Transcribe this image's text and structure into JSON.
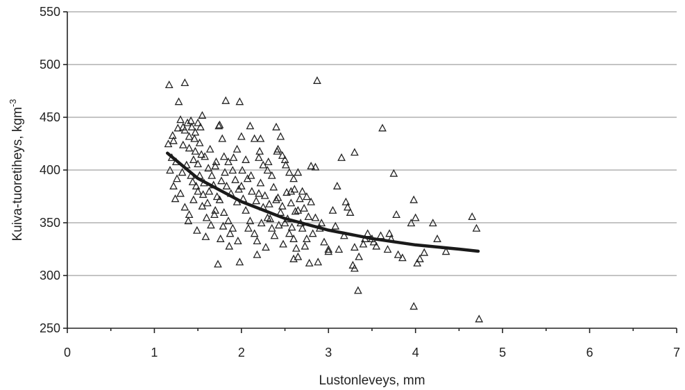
{
  "chart_data": {
    "type": "scatter",
    "title": "",
    "xlabel": "Lustonleveys, mm",
    "ylabel": "Kuiva-tuoretiheys, kgm",
    "ylabel_superscript": "-3",
    "xlim": [
      0,
      7
    ],
    "ylim": [
      250,
      550
    ],
    "xticks": [
      "0",
      "1",
      "2",
      "3",
      "4",
      "5",
      "6",
      "7"
    ],
    "yticks": [
      "250",
      "300",
      "350",
      "400",
      "450",
      "500",
      "550"
    ],
    "grid": "horizontal",
    "marker": "open-triangle",
    "trendline": {
      "type": "curve",
      "x": [
        1.15,
        1.5,
        2.0,
        2.5,
        3.0,
        3.5,
        4.0,
        4.5,
        4.72
      ],
      "y": [
        416,
        392,
        370,
        354,
        343,
        335,
        329,
        325,
        323
      ]
    },
    "points": [
      [
        1.17,
        481
      ],
      [
        1.35,
        483
      ],
      [
        1.28,
        465
      ],
      [
        2.87,
        485
      ],
      [
        1.82,
        466
      ],
      [
        1.98,
        465
      ],
      [
        1.22,
        428
      ],
      [
        1.27,
        440
      ],
      [
        1.3,
        448
      ],
      [
        1.35,
        438
      ],
      [
        1.38,
        445
      ],
      [
        1.4,
        432
      ],
      [
        1.43,
        441
      ],
      [
        1.46,
        430
      ],
      [
        1.5,
        445
      ],
      [
        1.55,
        452
      ],
      [
        1.52,
        426
      ],
      [
        1.47,
        418
      ],
      [
        1.4,
        421
      ],
      [
        1.33,
        424
      ],
      [
        1.2,
        412
      ],
      [
        1.25,
        408
      ],
      [
        1.45,
        410
      ],
      [
        1.5,
        406
      ],
      [
        1.58,
        413
      ],
      [
        1.62,
        402
      ],
      [
        1.66,
        395
      ],
      [
        1.7,
        404
      ],
      [
        1.74,
        442
      ],
      [
        1.78,
        430
      ],
      [
        1.8,
        413
      ],
      [
        1.85,
        408
      ],
      [
        1.9,
        400
      ],
      [
        1.95,
        420
      ],
      [
        2.0,
        432
      ],
      [
        2.05,
        410
      ],
      [
        2.1,
        442
      ],
      [
        2.15,
        430
      ],
      [
        2.2,
        412
      ],
      [
        2.25,
        405
      ],
      [
        2.3,
        400
      ],
      [
        2.35,
        395
      ],
      [
        2.4,
        441
      ],
      [
        2.45,
        432
      ],
      [
        2.5,
        410
      ],
      [
        2.55,
        398
      ],
      [
        2.6,
        392
      ],
      [
        2.65,
        398
      ],
      [
        2.7,
        380
      ],
      [
        2.75,
        375
      ],
      [
        2.8,
        404
      ],
      [
        2.85,
        403
      ],
      [
        1.18,
        400
      ],
      [
        1.22,
        385
      ],
      [
        1.3,
        378
      ],
      [
        1.35,
        365
      ],
      [
        1.4,
        358
      ],
      [
        1.45,
        372
      ],
      [
        1.5,
        380
      ],
      [
        1.55,
        366
      ],
      [
        1.6,
        355
      ],
      [
        1.65,
        348
      ],
      [
        1.7,
        362
      ],
      [
        1.75,
        372
      ],
      [
        1.8,
        360
      ],
      [
        1.85,
        352
      ],
      [
        1.9,
        345
      ],
      [
        1.95,
        370
      ],
      [
        2.0,
        385
      ],
      [
        2.05,
        362
      ],
      [
        2.1,
        352
      ],
      [
        2.15,
        340
      ],
      [
        2.2,
        378
      ],
      [
        2.25,
        365
      ],
      [
        2.3,
        355
      ],
      [
        2.35,
        345
      ],
      [
        2.4,
        372
      ],
      [
        2.45,
        360
      ],
      [
        2.5,
        350
      ],
      [
        2.55,
        340
      ],
      [
        2.6,
        335
      ],
      [
        2.65,
        362
      ],
      [
        2.7,
        345
      ],
      [
        2.75,
        335
      ],
      [
        2.8,
        370
      ],
      [
        2.85,
        355
      ],
      [
        2.9,
        345
      ],
      [
        2.95,
        332
      ],
      [
        3.0,
        325
      ],
      [
        3.05,
        362
      ],
      [
        3.1,
        385
      ],
      [
        3.15,
        412
      ],
      [
        3.2,
        370
      ],
      [
        3.25,
        360
      ],
      [
        3.3,
        417
      ],
      [
        3.3,
        327
      ],
      [
        3.35,
        318
      ],
      [
        3.4,
        330
      ],
      [
        3.45,
        340
      ],
      [
        3.5,
        335
      ],
      [
        3.55,
        328
      ],
      [
        3.6,
        338
      ],
      [
        3.62,
        440
      ],
      [
        3.75,
        397
      ],
      [
        3.7,
        340
      ],
      [
        3.78,
        358
      ],
      [
        3.8,
        320
      ],
      [
        3.85,
        317
      ],
      [
        3.95,
        350
      ],
      [
        3.98,
        372
      ],
      [
        4.0,
        355
      ],
      [
        4.02,
        312
      ],
      [
        4.05,
        316
      ],
      [
        4.1,
        322
      ],
      [
        4.2,
        350
      ],
      [
        4.25,
        335
      ],
      [
        4.35,
        323
      ],
      [
        4.65,
        356
      ],
      [
        4.7,
        345
      ],
      [
        4.73,
        259
      ],
      [
        3.98,
        271
      ],
      [
        3.34,
        286
      ],
      [
        3.3,
        307
      ],
      [
        1.73,
        311
      ],
      [
        1.98,
        313
      ],
      [
        2.18,
        320
      ],
      [
        2.6,
        316
      ],
      [
        2.65,
        318
      ],
      [
        2.78,
        312
      ],
      [
        2.88,
        313
      ],
      [
        3.0,
        323
      ],
      [
        3.28,
        310
      ],
      [
        1.52,
        395
      ],
      [
        1.57,
        388
      ],
      [
        1.63,
        380
      ],
      [
        1.68,
        386
      ],
      [
        1.72,
        375
      ],
      [
        1.77,
        390
      ],
      [
        1.83,
        385
      ],
      [
        1.88,
        378
      ],
      [
        1.93,
        391
      ],
      [
        1.97,
        382
      ],
      [
        2.02,
        373
      ],
      [
        2.07,
        392
      ],
      [
        2.12,
        380
      ],
      [
        2.17,
        371
      ],
      [
        2.22,
        388
      ],
      [
        2.27,
        376
      ],
      [
        2.32,
        368
      ],
      [
        2.37,
        384
      ],
      [
        2.42,
        374
      ],
      [
        2.47,
        366
      ],
      [
        2.52,
        379
      ],
      [
        2.57,
        369
      ],
      [
        2.62,
        361
      ],
      [
        2.67,
        373
      ],
      [
        2.72,
        364
      ],
      [
        2.77,
        356
      ],
      [
        1.42,
        395
      ],
      [
        1.37,
        405
      ],
      [
        1.48,
        385
      ],
      [
        1.56,
        377
      ],
      [
        1.61,
        369
      ],
      [
        1.69,
        358
      ],
      [
        1.79,
        347
      ],
      [
        1.87,
        340
      ],
      [
        1.96,
        333
      ],
      [
        2.08,
        345
      ],
      [
        2.18,
        333
      ],
      [
        2.28,
        327
      ],
      [
        2.38,
        338
      ],
      [
        2.48,
        330
      ],
      [
        2.58,
        346
      ],
      [
        2.68,
        350
      ],
      [
        2.82,
        340
      ],
      [
        2.92,
        350
      ],
      [
        3.08,
        347
      ],
      [
        3.18,
        338
      ],
      [
        1.26,
        392
      ],
      [
        1.32,
        398
      ],
      [
        1.44,
        389
      ],
      [
        1.54,
        415
      ],
      [
        1.64,
        420
      ],
      [
        1.71,
        408
      ],
      [
        1.81,
        398
      ],
      [
        1.91,
        412
      ],
      [
        2.01,
        400
      ],
      [
        2.11,
        395
      ],
      [
        2.21,
        418
      ],
      [
        2.31,
        408
      ],
      [
        2.41,
        418
      ],
      [
        2.51,
        405
      ],
      [
        2.61,
        382
      ],
      [
        1.24,
        373
      ],
      [
        1.39,
        352
      ],
      [
        1.49,
        343
      ],
      [
        1.59,
        337
      ],
      [
        1.76,
        335
      ],
      [
        1.86,
        328
      ],
      [
        2.23,
        350
      ],
      [
        2.33,
        354
      ],
      [
        2.43,
        348
      ],
      [
        2.53,
        354
      ],
      [
        2.63,
        326
      ],
      [
        2.73,
        328
      ],
      [
        3.12,
        325
      ],
      [
        3.22,
        365
      ],
      [
        3.42,
        335
      ],
      [
        3.52,
        332
      ],
      [
        3.72,
        335
      ],
      [
        3.68,
        325
      ],
      [
        1.16,
        425
      ],
      [
        1.21,
        433
      ],
      [
        1.33,
        441
      ],
      [
        1.42,
        447
      ],
      [
        1.47,
        436
      ],
      [
        1.53,
        441
      ],
      [
        1.75,
        443
      ],
      [
        2.22,
        430
      ],
      [
        2.42,
        420
      ],
      [
        2.47,
        414
      ],
      [
        2.57,
        380
      ]
    ]
  }
}
